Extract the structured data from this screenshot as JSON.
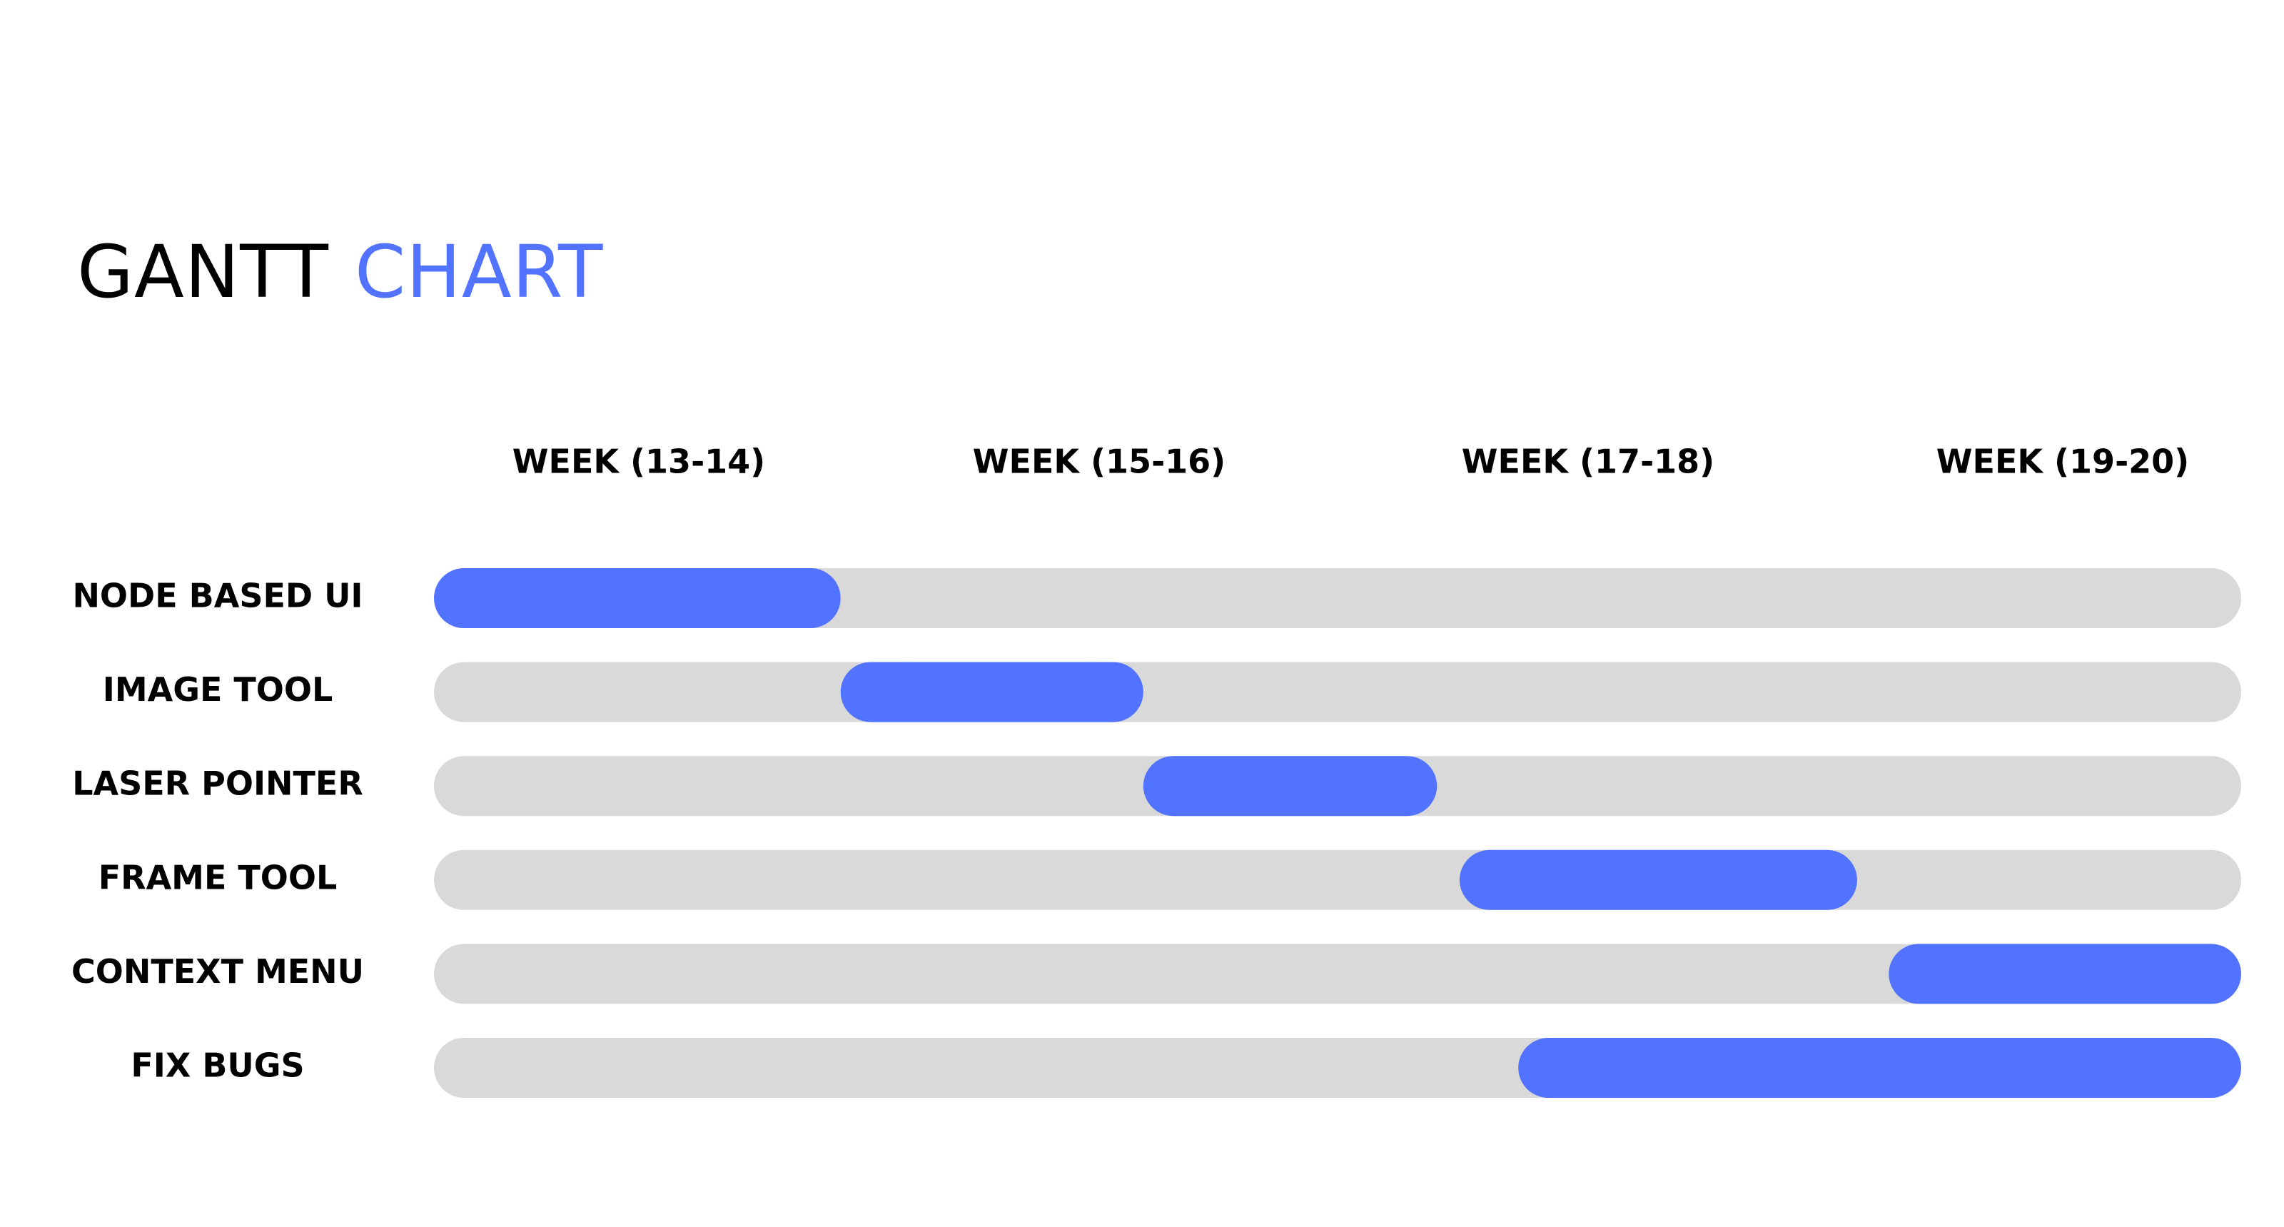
{
  "title": {
    "part1": "GANTT",
    "part2": "CHART"
  },
  "colors": {
    "accent": "#5273ff",
    "track": "#d9d9d9",
    "text": "#000000"
  },
  "chart_data": {
    "type": "gantt",
    "title": "GANTT CHART",
    "periods": [
      "WEEK (13-14)",
      "WEEK (15-16)",
      "WEEK (17-18)",
      "WEEK (19-20)"
    ],
    "x_range": [
      0,
      4
    ],
    "tasks": [
      {
        "name": "NODE BASED UI",
        "start": 0.0,
        "end": 0.9
      },
      {
        "name": "IMAGE TOOL",
        "start": 0.9,
        "end": 1.57
      },
      {
        "name": "LASER POINTER",
        "start": 1.57,
        "end": 2.22
      },
      {
        "name": "FRAME TOOL",
        "start": 2.27,
        "end": 3.15
      },
      {
        "name": "CONTEXT MENU",
        "start": 3.22,
        "end": 4.0
      },
      {
        "name": "FIX BUGS",
        "start": 2.4,
        "end": 4.0
      }
    ]
  }
}
